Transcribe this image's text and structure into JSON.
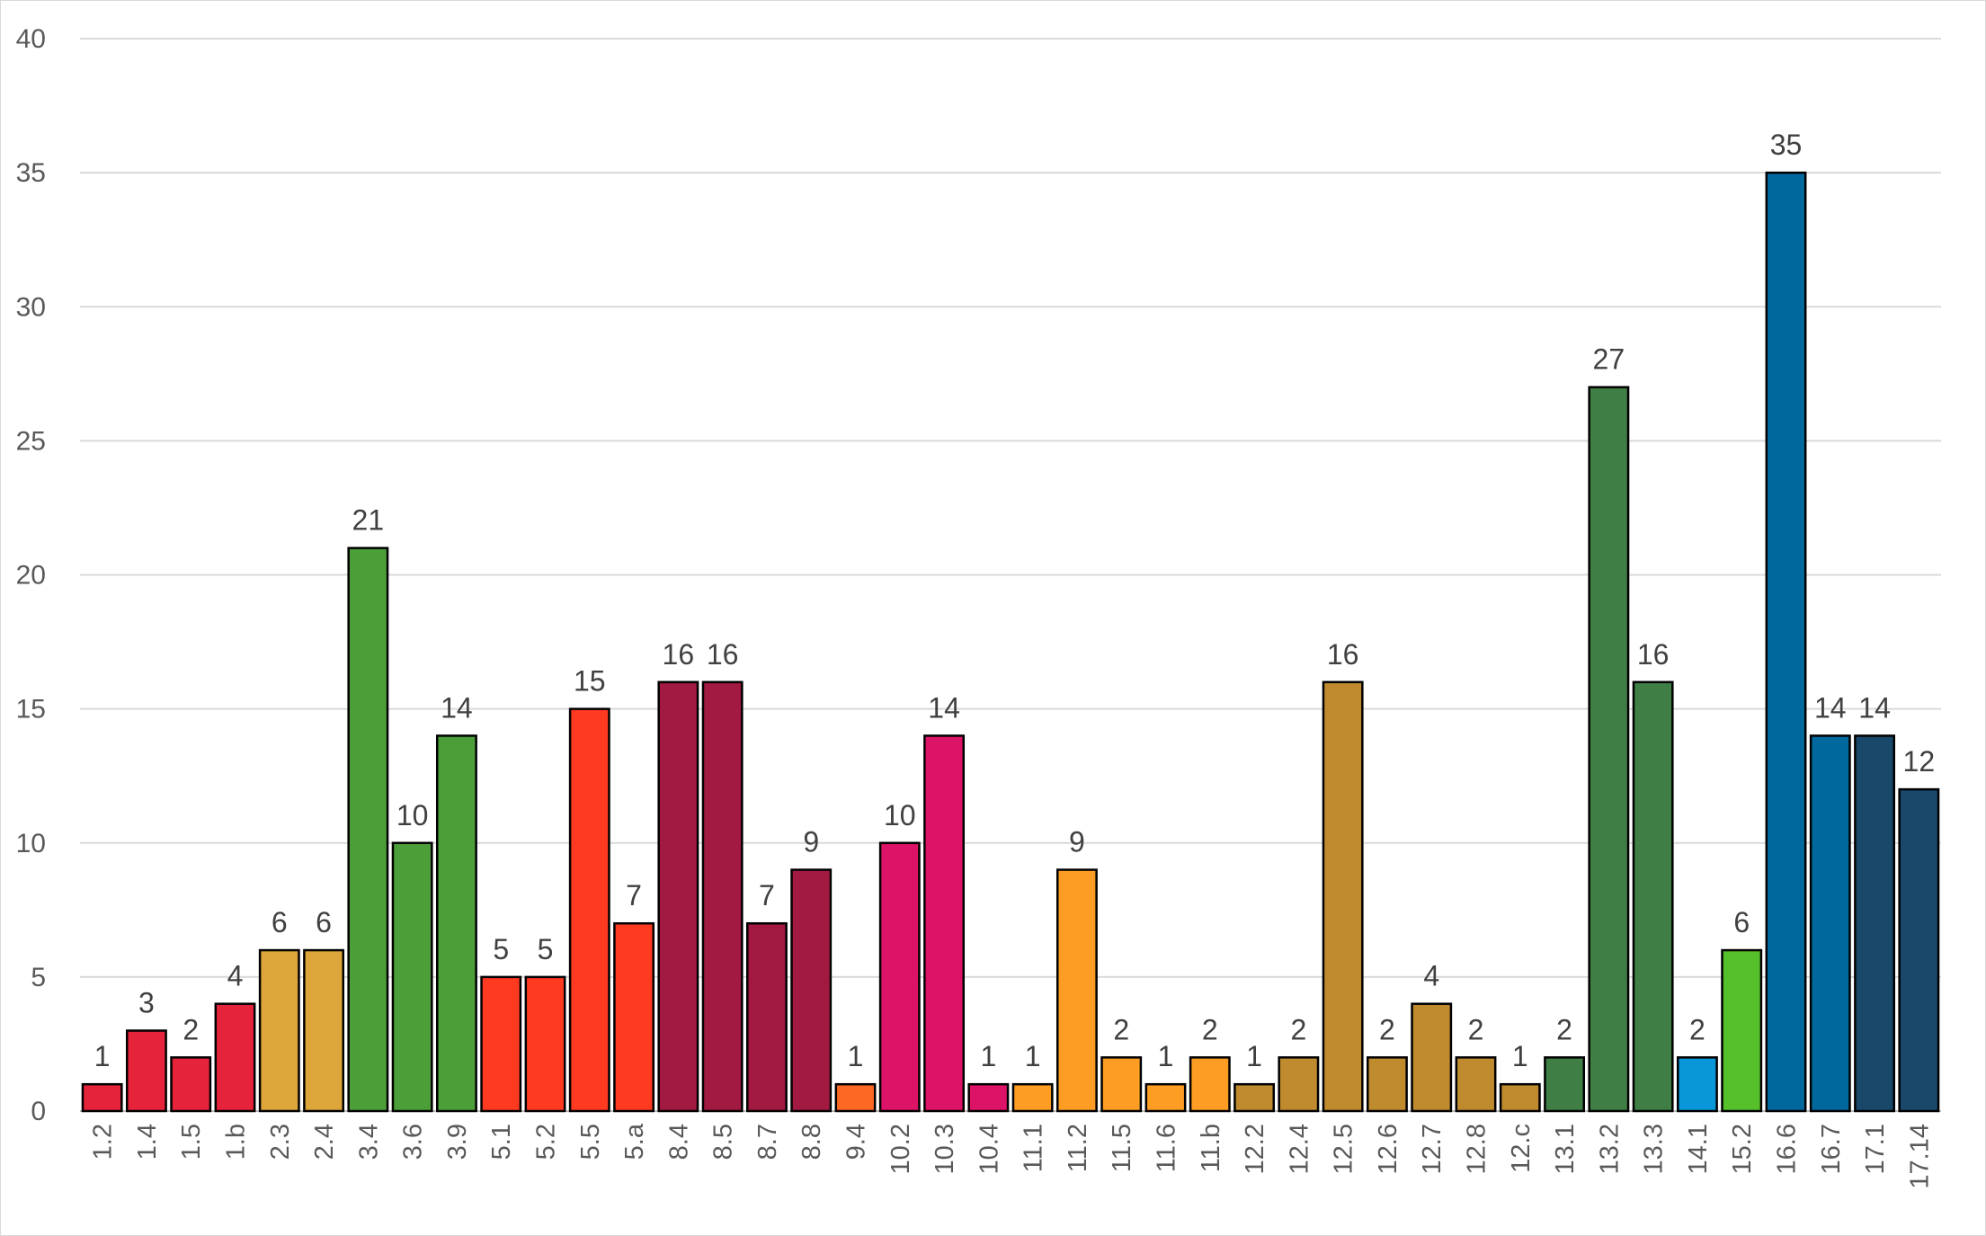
{
  "chart_data": {
    "type": "bar",
    "title": "",
    "xlabel": "",
    "ylabel": "",
    "ylim": [
      0,
      40
    ],
    "yticks": [
      0,
      5,
      10,
      15,
      20,
      25,
      30,
      35,
      40
    ],
    "grid": true,
    "legend": "none",
    "categories": [
      "1.2",
      "1.4",
      "1.5",
      "1.b",
      "2.3",
      "2.4",
      "3.4",
      "3.6",
      "3.9",
      "5.1",
      "5.2",
      "5.5",
      "5.a",
      "8.4",
      "8.5",
      "8.7",
      "8.8",
      "9.4",
      "10.2",
      "10.3",
      "10.4",
      "11.1",
      "11.2",
      "11.5",
      "11.6",
      "11.b",
      "12.2",
      "12.4",
      "12.5",
      "12.6",
      "12.7",
      "12.8",
      "12.c",
      "13.1",
      "13.2",
      "13.3",
      "14.1",
      "15.2",
      "16.6",
      "16.7",
      "17.1",
      "17.14"
    ],
    "values": [
      1,
      3,
      2,
      4,
      6,
      6,
      21,
      10,
      14,
      5,
      5,
      15,
      7,
      16,
      16,
      7,
      9,
      1,
      10,
      14,
      1,
      1,
      9,
      2,
      1,
      2,
      1,
      2,
      16,
      2,
      4,
      2,
      1,
      2,
      27,
      16,
      2,
      6,
      35,
      14,
      14,
      12
    ],
    "colors": [
      "#e5243b",
      "#e5243b",
      "#e5243b",
      "#e5243b",
      "#dda63a",
      "#dda63a",
      "#4c9f38",
      "#4c9f38",
      "#4c9f38",
      "#ff3a21",
      "#ff3a21",
      "#ff3a21",
      "#ff3a21",
      "#a21942",
      "#a21942",
      "#a21942",
      "#a21942",
      "#fd6925",
      "#dd1367",
      "#dd1367",
      "#dd1367",
      "#fd9d24",
      "#fd9d24",
      "#fd9d24",
      "#fd9d24",
      "#fd9d24",
      "#bf8b2e",
      "#bf8b2e",
      "#bf8b2e",
      "#bf8b2e",
      "#bf8b2e",
      "#bf8b2e",
      "#bf8b2e",
      "#3f7e44",
      "#3f7e44",
      "#3f7e44",
      "#0a97d9",
      "#56c02b",
      "#00689d",
      "#00689d",
      "#19486a",
      "#19486a"
    ]
  }
}
